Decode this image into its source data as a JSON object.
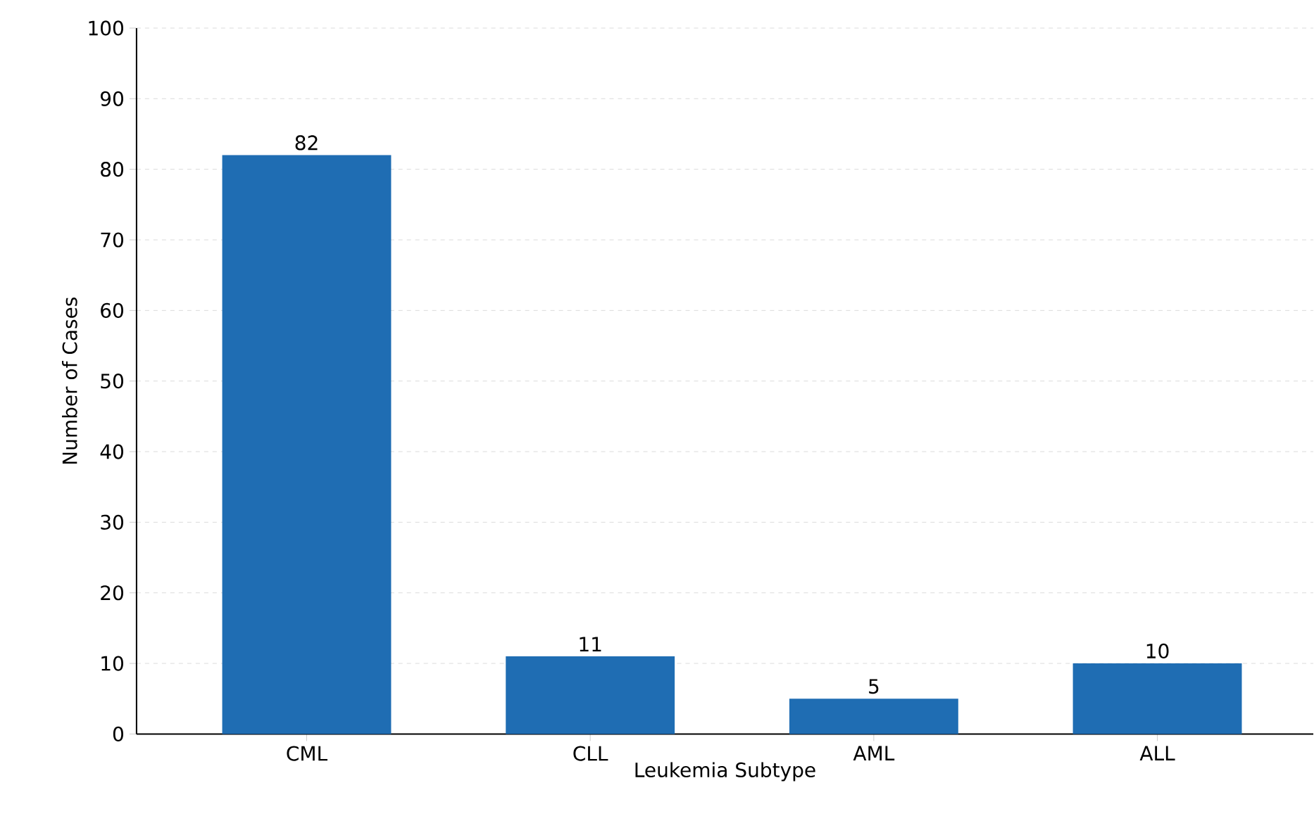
{
  "chart_data": {
    "type": "bar",
    "xlabel": "Leukemia Subtype",
    "ylabel": "Number of Cases",
    "categories": [
      "CML",
      "CLL",
      "AML",
      "ALL"
    ],
    "values": [
      82,
      11,
      5,
      10
    ],
    "color": "#1f6db3",
    "ylim": [
      0,
      100
    ],
    "yticks": [
      0,
      10,
      20,
      30,
      40,
      50,
      60,
      70,
      80,
      90,
      100
    ],
    "grid": "y",
    "data_labels": true
  }
}
